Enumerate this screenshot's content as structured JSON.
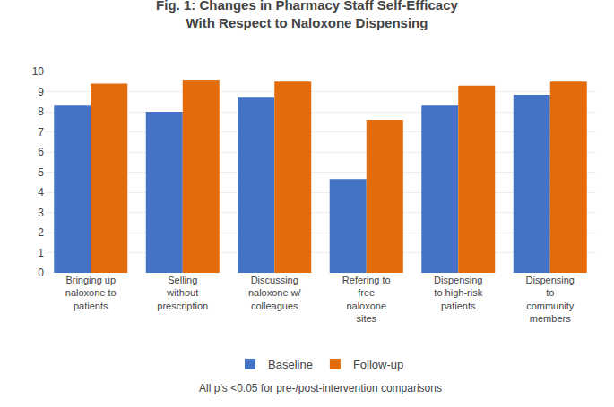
{
  "chart_data": {
    "type": "bar",
    "title": "Fig. 1: Changes in Pharmacy Staff Self-Efficacy\nWith Respect to Naloxone Dispensing",
    "categories": [
      "Bringing up\nnaloxone to\npatients",
      "Selling\nwithout\nprescription",
      "Discussing\nnaloxone w/\ncolleagues",
      "Refering to\nfree\nnaloxone\nsites",
      "Dispensing\nto high-risk\npatients",
      "Dispensing\nto\ncommunity\nmembers"
    ],
    "series": [
      {
        "name": "Baseline",
        "color": "#4472C4",
        "values": [
          8.35,
          8.0,
          8.75,
          4.65,
          8.35,
          8.85
        ]
      },
      {
        "name": "Follow-up",
        "color": "#E36C0A",
        "values": [
          9.4,
          9.6,
          9.5,
          7.6,
          9.3,
          9.5
        ]
      }
    ],
    "ylim": [
      0,
      10
    ],
    "yticks": [
      0,
      1,
      2,
      3,
      4,
      5,
      6,
      7,
      8,
      9,
      10
    ],
    "grid": true,
    "legend": "bottom",
    "annotations": [
      "All p’s <0.05 for pre-/post-intervention comparisons"
    ]
  }
}
